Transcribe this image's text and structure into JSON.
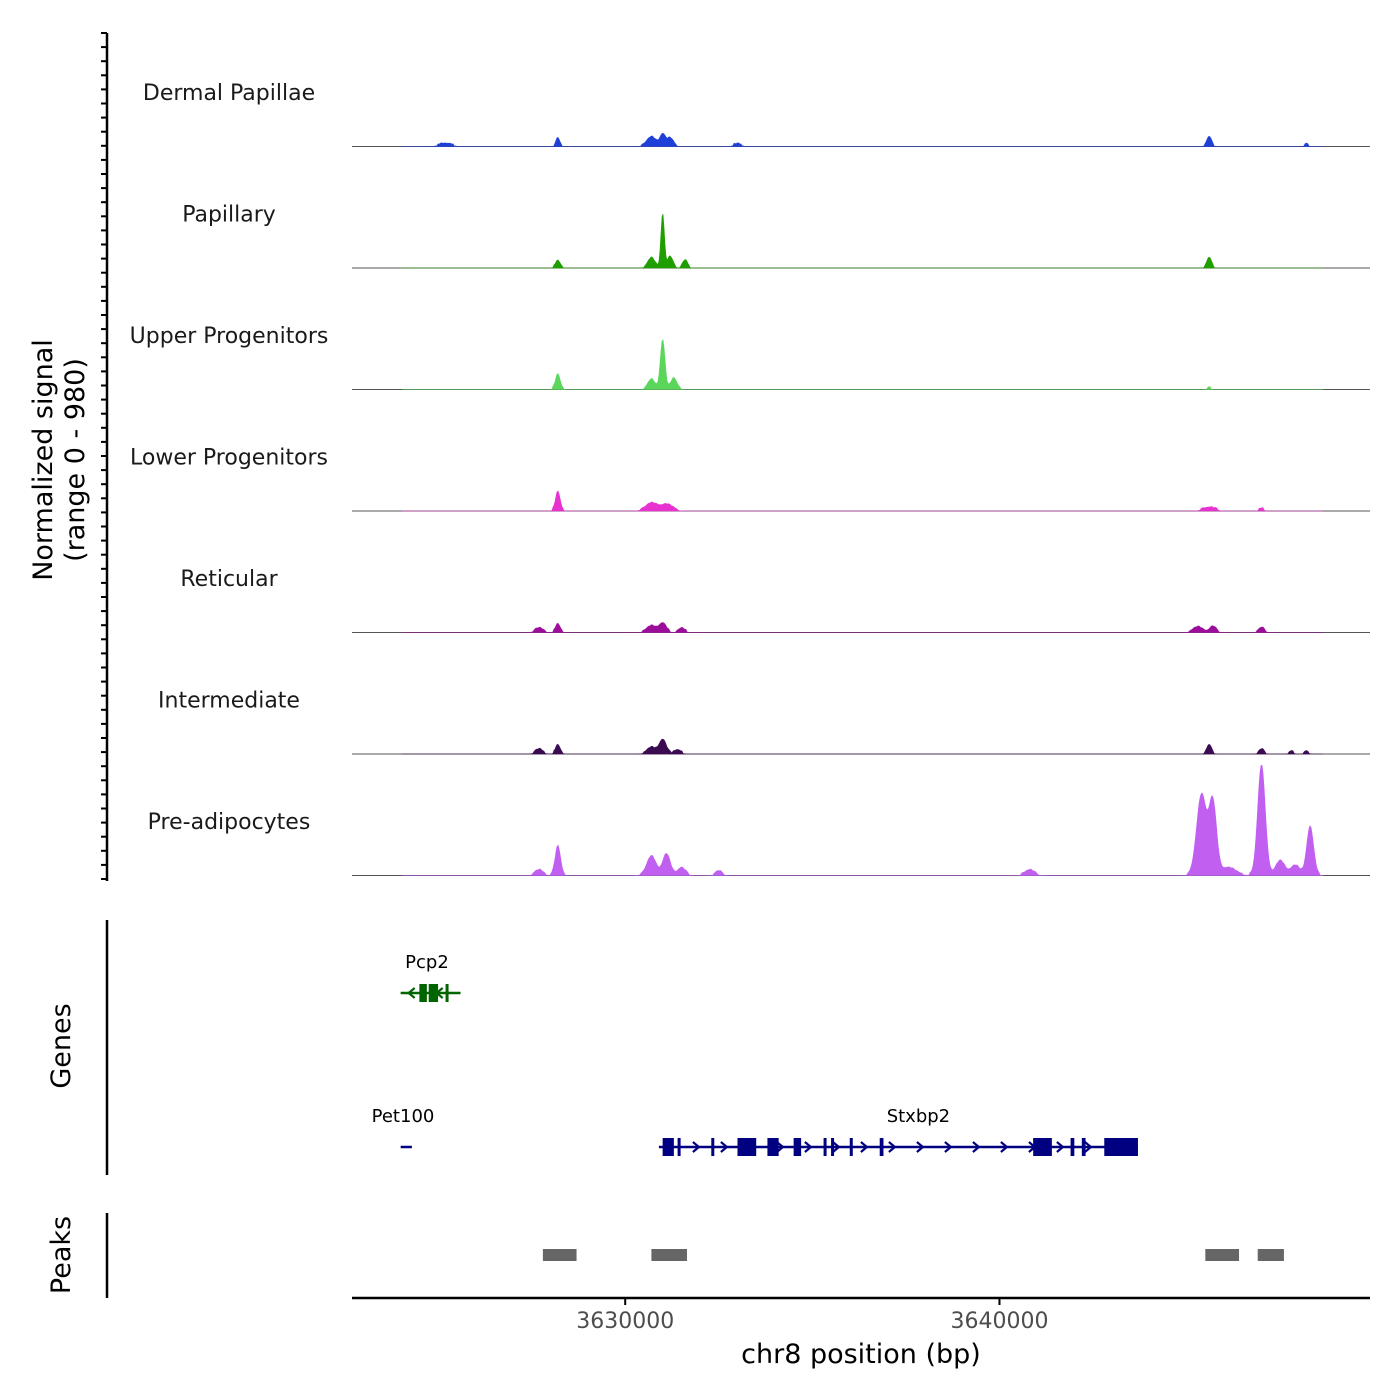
{
  "chart_data": {
    "type": "area",
    "xlabel": "chr8 position (bp)",
    "ylabel_line1": "Normalized signal",
    "ylabel_line2": "(range 0 - 980)",
    "y_range": [
      0,
      980
    ],
    "x_range": [
      3622700,
      3649900
    ],
    "x_ticks": [
      {
        "value": 3630000,
        "label": "3630000"
      },
      {
        "value": 3640000,
        "label": "3640000"
      }
    ],
    "tracks": [
      {
        "name": "Dermal Papillae",
        "color": "#1e3fd8",
        "peaks": [
          [
            3625200,
            20,
            150
          ],
          [
            3628200,
            65,
            50
          ],
          [
            3630700,
            75,
            120
          ],
          [
            3631000,
            100,
            70
          ],
          [
            3631200,
            65,
            80
          ],
          [
            3633000,
            15,
            100
          ],
          [
            3645600,
            80,
            60
          ],
          [
            3648200,
            20,
            40
          ]
        ]
      },
      {
        "name": "Papillary",
        "color": "#1f9e00",
        "peaks": [
          [
            3628200,
            55,
            60
          ],
          [
            3630700,
            80,
            90
          ],
          [
            3631000,
            470,
            45
          ],
          [
            3631200,
            90,
            70
          ],
          [
            3631600,
            60,
            60
          ],
          [
            3645600,
            85,
            60
          ]
        ]
      },
      {
        "name": "Upper Progenitors",
        "color": "#5ad75a",
        "peaks": [
          [
            3628200,
            125,
            60
          ],
          [
            3630700,
            80,
            90
          ],
          [
            3631000,
            430,
            60
          ],
          [
            3631300,
            90,
            80
          ],
          [
            3645600,
            15,
            40
          ]
        ]
      },
      {
        "name": "Lower Progenitors",
        "color": "#e832d0",
        "peaks": [
          [
            3628200,
            160,
            60
          ],
          [
            3630700,
            60,
            150
          ],
          [
            3631100,
            50,
            150
          ],
          [
            3645600,
            25,
            150
          ],
          [
            3647000,
            15,
            60
          ]
        ]
      },
      {
        "name": "Reticular",
        "color": "#9c0e9a",
        "peaks": [
          [
            3627700,
            30,
            100
          ],
          [
            3628200,
            65,
            60
          ],
          [
            3630700,
            50,
            120
          ],
          [
            3631000,
            75,
            90
          ],
          [
            3631500,
            30,
            80
          ],
          [
            3645300,
            40,
            120
          ],
          [
            3645700,
            45,
            80
          ],
          [
            3647000,
            35,
            70
          ]
        ]
      },
      {
        "name": "Intermediate",
        "color": "#3b0b52",
        "peaks": [
          [
            3627700,
            35,
            90
          ],
          [
            3628200,
            70,
            60
          ],
          [
            3630700,
            50,
            110
          ],
          [
            3631000,
            120,
            90
          ],
          [
            3631400,
            30,
            80
          ],
          [
            3645600,
            75,
            60
          ],
          [
            3647000,
            35,
            60
          ],
          [
            3647800,
            20,
            50
          ],
          [
            3648200,
            20,
            50
          ]
        ]
      },
      {
        "name": "Pre-adipocytes",
        "color": "#c15ff1",
        "peaks": [
          [
            3627700,
            40,
            100
          ],
          [
            3628200,
            250,
            70
          ],
          [
            3630700,
            160,
            120
          ],
          [
            3631100,
            180,
            100
          ],
          [
            3631500,
            60,
            100
          ],
          [
            3632500,
            30,
            80
          ],
          [
            3640800,
            40,
            120
          ],
          [
            3645400,
            700,
            130
          ],
          [
            3645700,
            620,
            100
          ],
          [
            3646100,
            60,
            200
          ],
          [
            3647000,
            960,
            100
          ],
          [
            3647500,
            120,
            120
          ],
          [
            3647900,
            80,
            120
          ],
          [
            3648300,
            420,
            90
          ]
        ]
      }
    ],
    "genes_label": "Genes",
    "genes": [
      {
        "name": "Pcp2",
        "color": "#006400",
        "start": 3624000,
        "end": 3625600,
        "strand": "-",
        "row": 1,
        "exons": [
          [
            3624500,
            3624700
          ],
          [
            3624750,
            3625000
          ],
          [
            3625200,
            3625280
          ]
        ]
      },
      {
        "name": "Pet100",
        "color": "#000080",
        "start": 3624000,
        "end": 3624300,
        "strand": "+",
        "row": 2,
        "exons": []
      },
      {
        "name": "Stxbp2",
        "color": "#000080",
        "start": 3630900,
        "end": 3643700,
        "strand": "+",
        "row": 2,
        "exons": [
          [
            3631000,
            3631300
          ],
          [
            3631400,
            3631450
          ],
          [
            3632300,
            3632350
          ],
          [
            3633000,
            3633500
          ],
          [
            3633800,
            3634100
          ],
          [
            3634500,
            3634700
          ],
          [
            3635300,
            3635350
          ],
          [
            3635500,
            3635550
          ],
          [
            3636000,
            3636050
          ],
          [
            3636800,
            3636900
          ],
          [
            3640900,
            3641400
          ],
          [
            3641900,
            3642000
          ],
          [
            3642200,
            3642300
          ],
          [
            3642800,
            3643700
          ]
        ]
      }
    ],
    "peaks_label": "Peaks",
    "peak_regions": [
      [
        3627800,
        3628700
      ],
      [
        3630700,
        3631650
      ],
      [
        3645500,
        3646400
      ],
      [
        3646900,
        3647600
      ]
    ]
  }
}
